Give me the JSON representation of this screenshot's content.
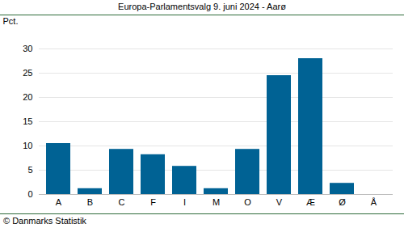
{
  "chart_data": {
    "type": "bar",
    "title": "Europa-Parlamentsvalg 9. juni 2024 - Aarø",
    "y_label": "Pct.",
    "caption": "© Danmarks Statistik",
    "categories": [
      "A",
      "B",
      "C",
      "F",
      "I",
      "M",
      "O",
      "V",
      "Æ",
      "Ø",
      "Å"
    ],
    "values": [
      10.5,
      1.2,
      9.3,
      8.2,
      5.8,
      1.2,
      9.3,
      24.5,
      28.0,
      2.3,
      0
    ],
    "color": "#006294",
    "ylim": [
      0,
      30
    ],
    "yticks": [
      0,
      5,
      10,
      15,
      20,
      25,
      30
    ],
    "grid": true
  }
}
